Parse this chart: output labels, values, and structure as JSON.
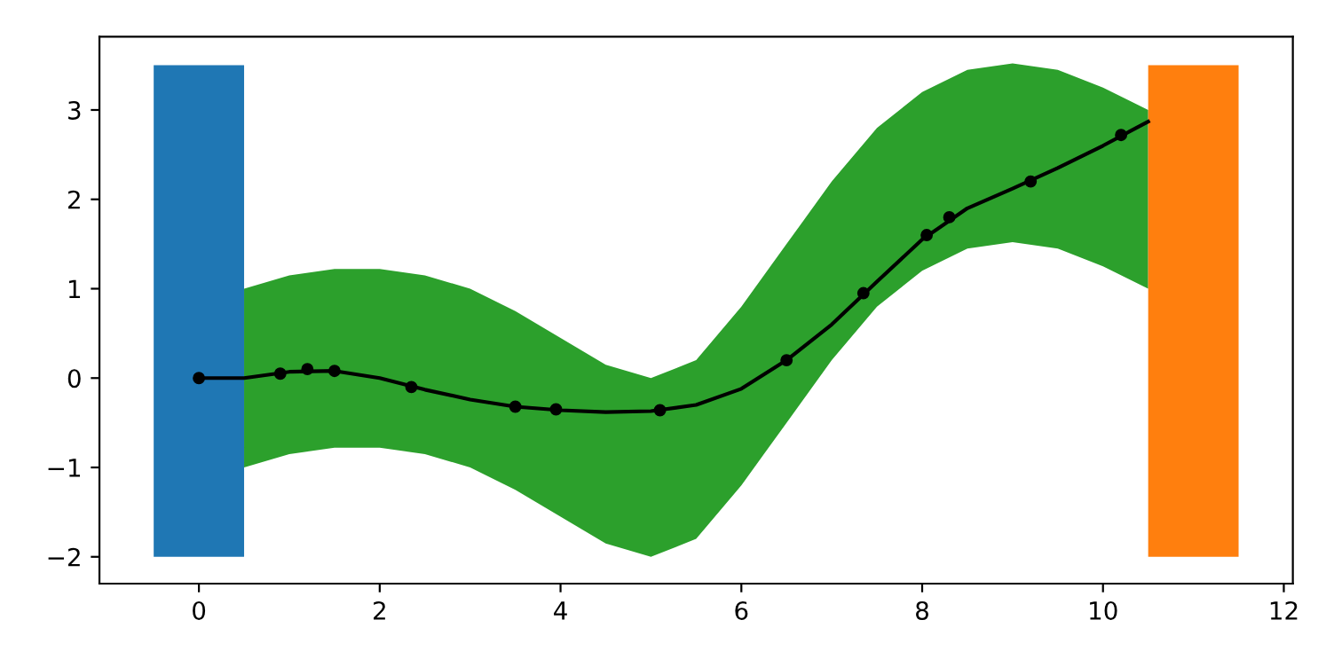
{
  "chart_data": {
    "type": "line",
    "xlim": [
      -1.1,
      12.1
    ],
    "ylim": [
      -2.3,
      3.82
    ],
    "xticks": [
      0,
      2,
      4,
      6,
      8,
      10,
      12
    ],
    "yticks": [
      {
        "value": -2,
        "label": "−2"
      },
      {
        "value": -1,
        "label": "−1"
      },
      0,
      1,
      2,
      3
    ],
    "grid": false,
    "legend": false,
    "series": [
      {
        "type": "area",
        "color": "#2ca02c",
        "x": [
          0.5,
          1.0,
          1.5,
          2.0,
          2.5,
          3.0,
          3.5,
          4.0,
          4.5,
          5.0,
          5.5,
          6.0,
          6.5,
          7.0,
          7.5,
          8.0,
          8.5,
          9.0,
          9.5,
          10.0,
          10.5
        ],
        "values": [
          null,
          null,
          null,
          null,
          null,
          null,
          null,
          null,
          null,
          null,
          null,
          null,
          null,
          null,
          null,
          null,
          null,
          null,
          null,
          null,
          null
        ],
        "lower": [
          -1.0,
          -0.85,
          -0.78,
          -0.78,
          -0.85,
          -1.0,
          -1.25,
          -1.55,
          -1.85,
          -2.0,
          -1.8,
          -1.2,
          -0.5,
          0.2,
          0.8,
          1.2,
          1.45,
          1.52,
          1.45,
          1.25,
          1.0
        ],
        "upper": [
          1.0,
          1.15,
          1.22,
          1.22,
          1.15,
          1.0,
          0.75,
          0.45,
          0.15,
          0.0,
          0.2,
          0.8,
          1.5,
          2.2,
          2.8,
          3.2,
          3.45,
          3.52,
          3.45,
          3.25,
          3.0
        ]
      },
      {
        "type": "bar",
        "x": [
          0,
          11
        ],
        "base": [
          -2,
          -2
        ],
        "values": [
          5.5,
          5.5
        ],
        "colors": [
          "#1f77b4",
          "#ff7f0e"
        ]
      },
      {
        "color": "#000000",
        "marker": "none",
        "x": [
          0,
          0.5,
          1.0,
          1.5,
          2.0,
          2.5,
          3.0,
          3.5,
          4.0,
          4.5,
          5.0,
          5.5,
          6.0,
          6.5,
          7.0,
          7.5,
          8.0,
          8.5,
          9.0,
          9.5,
          10.0,
          10.5
        ],
        "values": [
          0,
          0.0,
          0.07,
          0.08,
          0.0,
          -0.13,
          -0.24,
          -0.32,
          -0.36,
          -0.38,
          -0.37,
          -0.3,
          -0.12,
          0.2,
          0.6,
          1.08,
          1.55,
          1.9,
          2.12,
          2.35,
          2.6,
          2.87
        ]
      },
      {
        "type": "scatter",
        "color": "#000000",
        "marker": "circle",
        "x": [
          0,
          0.9,
          1.2,
          1.5,
          2.35,
          3.5,
          3.95,
          5.1,
          6.5,
          7.35,
          8.05,
          8.3,
          9.2,
          10.2
        ],
        "values": [
          0,
          0.05,
          0.1,
          0.08,
          -0.1,
          -0.32,
          -0.35,
          -0.36,
          0.2,
          0.95,
          1.6,
          1.8,
          2.2,
          2.72
        ]
      }
    ]
  }
}
